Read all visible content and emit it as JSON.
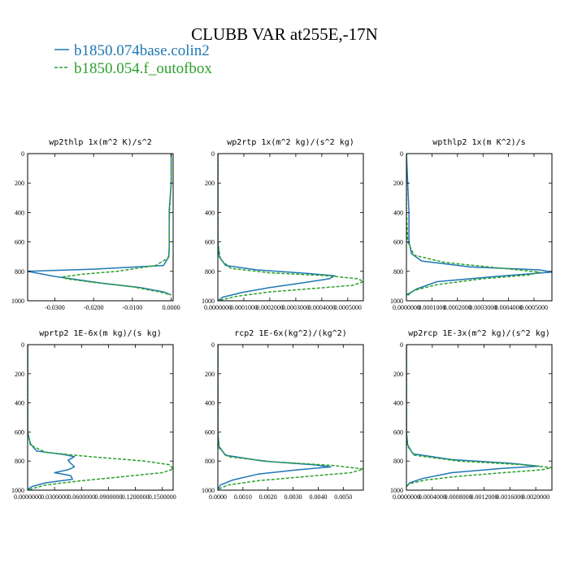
{
  "figure": {
    "title": "CLUBB VAR at255E,-17N",
    "legend": [
      {
        "name": "b1850.074base.colin2",
        "color": "#1f77b4",
        "dash": "solid"
      },
      {
        "name": "b1850.054.f_outofbox",
        "color": "#2ca02c",
        "dash": "dashed"
      }
    ]
  },
  "chart_data": [
    {
      "type": "line",
      "title": "wp2thlp  1x(m^2 K)/s^2",
      "xlim": [
        -0.037,
        0.0005
      ],
      "ylim": [
        1000,
        0
      ],
      "grid": false,
      "xticks": [
        -0.03,
        -0.02,
        -0.01,
        0.0
      ],
      "xtick_labels": [
        "-0.0300",
        "-0.0200",
        "-0.0100",
        "0.0000"
      ],
      "yticks": [
        0,
        200,
        400,
        600,
        800,
        1000
      ],
      "ytick_labels": [
        "0",
        "200",
        "400",
        "600",
        "800",
        "1000"
      ],
      "series": [
        {
          "name": "b1850.074base.colin2",
          "color": "#1f77b4",
          "dash": "solid",
          "x": [
            0.0,
            0.0,
            -0.0005,
            -0.0005,
            -0.0005,
            -0.0006,
            -0.002,
            -0.02,
            -0.037,
            -0.033,
            -0.03,
            -0.018,
            -0.008,
            -0.002,
            0.0
          ],
          "y": [
            0,
            200,
            380,
            500,
            640,
            700,
            760,
            785,
            800,
            820,
            835,
            880,
            910,
            940,
            960
          ]
        },
        {
          "name": "b1850.054.f_outofbox",
          "color": "#2ca02c",
          "dash": "dashed",
          "x": [
            0.0,
            0.0,
            -0.0004,
            -0.0005,
            -0.0005,
            -0.0008,
            -0.004,
            -0.014,
            -0.023,
            -0.028,
            -0.027,
            -0.02,
            -0.01,
            -0.003,
            0.0
          ],
          "y": [
            0,
            200,
            380,
            500,
            640,
            710,
            760,
            800,
            820,
            838,
            850,
            875,
            905,
            940,
            960
          ]
        }
      ]
    },
    {
      "type": "line",
      "title": "wp2rtp  1x(m^2 kg)/(s^2 kg)",
      "xlim": [
        0.0,
        0.00056
      ],
      "ylim": [
        1000,
        0
      ],
      "grid": false,
      "xticks": [
        0.0,
        0.0001,
        0.0002,
        0.0003,
        0.0004,
        0.0005
      ],
      "xtick_labels": [
        "0.0000000",
        "0.0001000",
        "0.0002000",
        "0.0003000",
        "0.0004000",
        "0.0005000"
      ],
      "yticks": [
        0,
        200,
        400,
        600,
        800,
        1000
      ],
      "ytick_labels": [
        "0",
        "200",
        "400",
        "600",
        "800",
        "1000"
      ],
      "series": [
        {
          "name": "b1850.074base.colin2",
          "color": "#1f77b4",
          "dash": "solid",
          "x": [
            0.0,
            0.0,
            0.0,
            5e-06,
            3e-05,
            0.00015,
            0.00035,
            0.00045,
            0.00043,
            0.00032,
            0.0002,
            9e-05,
            2e-05,
            0.0
          ],
          "y": [
            0,
            300,
            600,
            700,
            760,
            790,
            815,
            830,
            850,
            880,
            910,
            945,
            975,
            1000
          ]
        },
        {
          "name": "b1850.054.f_outofbox",
          "color": "#2ca02c",
          "dash": "dashed",
          "x": [
            0.0,
            0.0,
            0.0,
            1e-05,
            5e-05,
            0.0002,
            0.00042,
            0.00054,
            0.00056,
            0.00052,
            0.00038,
            0.0002,
            7e-05,
            0.0
          ],
          "y": [
            0,
            300,
            600,
            720,
            780,
            810,
            830,
            850,
            870,
            895,
            915,
            940,
            970,
            1000
          ]
        }
      ]
    },
    {
      "type": "line",
      "title": "wpthlp2  1x(m K^2)/s",
      "xlim": [
        0.0,
        0.00057
      ],
      "ylim": [
        1000,
        0
      ],
      "grid": false,
      "xticks": [
        0.0,
        0.0001,
        0.0002,
        0.0003,
        0.0004,
        0.0005
      ],
      "xtick_labels": [
        "0.0000000",
        "0.0001000",
        "0.0002000",
        "0.0003000",
        "0.0004000",
        "0.0005000"
      ],
      "yticks": [
        0,
        200,
        400,
        600,
        800,
        1000
      ],
      "ytick_labels": [
        "0",
        "200",
        "400",
        "600",
        "800",
        "1000"
      ],
      "series": [
        {
          "name": "b1850.074base.colin2",
          "color": "#1f77b4",
          "dash": "solid",
          "x": [
            0.0,
            5e-06,
            1e-05,
            1e-05,
            2e-05,
            6e-05,
            0.00025,
            0.00052,
            0.00057,
            0.00035,
            0.00012,
            4e-05,
            0.0
          ],
          "y": [
            0,
            200,
            400,
            600,
            680,
            730,
            770,
            790,
            805,
            835,
            870,
            920,
            960
          ]
        },
        {
          "name": "b1850.054.f_outofbox",
          "color": "#2ca02c",
          "dash": "dashed",
          "x": [
            0.0,
            0.0,
            0.0,
            5e-06,
            3e-05,
            0.00015,
            0.00038,
            0.00052,
            0.00048,
            0.0003,
            0.00012,
            3e-05,
            0.0
          ],
          "y": [
            0,
            200,
            400,
            600,
            690,
            740,
            780,
            805,
            825,
            850,
            890,
            930,
            970
          ]
        }
      ]
    },
    {
      "type": "line",
      "title": "wprtp2  1E-6x(m kg)/(s kg)",
      "xlim": [
        0.0,
        0.162
      ],
      "ylim": [
        1000,
        0
      ],
      "grid": false,
      "xticks": [
        0.0,
        0.03,
        0.06,
        0.09,
        0.12,
        0.15
      ],
      "xtick_labels": [
        "0.0000000",
        "0.0300000",
        "0.0600000",
        "0.0900000",
        "0.1200000",
        "0.1500000"
      ],
      "yticks": [
        0,
        200,
        400,
        600,
        800,
        1000
      ],
      "ytick_labels": [
        "0",
        "200",
        "400",
        "600",
        "800",
        "1000"
      ],
      "series": [
        {
          "name": "b1850.074base.colin2",
          "color": "#1f77b4",
          "dash": "solid",
          "x": [
            0.0,
            0.0,
            0.0,
            0.003,
            0.01,
            0.04,
            0.052,
            0.045,
            0.048,
            0.052,
            0.045,
            0.03,
            0.048,
            0.05,
            0.02,
            0.005,
            0.0
          ],
          "y": [
            0,
            300,
            600,
            680,
            730,
            755,
            770,
            795,
            815,
            840,
            860,
            880,
            900,
            925,
            950,
            975,
            995
          ]
        },
        {
          "name": "b1850.054.f_outofbox",
          "color": "#2ca02c",
          "dash": "dashed",
          "x": [
            0.0,
            0.0,
            0.0,
            0.003,
            0.02,
            0.07,
            0.13,
            0.158,
            0.162,
            0.15,
            0.11,
            0.06,
            0.02,
            0.005,
            0.0
          ],
          "y": [
            0,
            300,
            600,
            690,
            740,
            770,
            800,
            825,
            855,
            880,
            905,
            935,
            965,
            990,
            1000
          ]
        }
      ]
    },
    {
      "type": "line",
      "title": "rcp2  1E-6x(kg^2)/(kg^2)",
      "xlim": [
        0.0,
        0.0058
      ],
      "ylim": [
        1000,
        0
      ],
      "grid": false,
      "xticks": [
        0.0,
        0.001,
        0.002,
        0.003,
        0.004,
        0.005
      ],
      "xtick_labels": [
        "0.0000",
        "0.0010",
        "0.0020",
        "0.0030",
        "0.0040",
        "0.0050"
      ],
      "yticks": [
        0,
        200,
        400,
        600,
        800,
        1000
      ],
      "ytick_labels": [
        "0",
        "200",
        "400",
        "600",
        "800",
        "1000"
      ],
      "series": [
        {
          "name": "b1850.074base.colin2",
          "color": "#1f77b4",
          "dash": "solid",
          "x": [
            0.0,
            0.0,
            0.0,
            5e-05,
            0.0003,
            0.0018,
            0.0038,
            0.0045,
            0.0032,
            0.0016,
            0.0006,
            0.0001,
            0.0
          ],
          "y": [
            0,
            300,
            600,
            700,
            760,
            800,
            825,
            840,
            860,
            890,
            930,
            965,
            995
          ]
        },
        {
          "name": "b1850.054.f_outofbox",
          "color": "#2ca02c",
          "dash": "dashed",
          "x": [
            0.0,
            0.0,
            0.0,
            5e-05,
            0.0004,
            0.0022,
            0.0046,
            0.0058,
            0.0053,
            0.0036,
            0.0016,
            0.0004,
            0.0
          ],
          "y": [
            0,
            300,
            600,
            710,
            770,
            805,
            830,
            855,
            880,
            905,
            935,
            965,
            995
          ]
        }
      ]
    },
    {
      "type": "line",
      "title": "wp2rcp  1E-3x(m^2 kg)/(s^2 kg)",
      "xlim": [
        0.0,
        0.00225
      ],
      "ylim": [
        1000,
        0
      ],
      "grid": false,
      "xticks": [
        0.0,
        0.0004,
        0.0008,
        0.0012,
        0.0016,
        0.002
      ],
      "xtick_labels": [
        "0.0000000",
        "0.0004000",
        "0.0008000",
        "0.0012000",
        "0.0016000",
        "0.0020000"
      ],
      "yticks": [
        0,
        200,
        400,
        600,
        800,
        1000
      ],
      "ytick_labels": [
        "0",
        "200",
        "400",
        "600",
        "800",
        "1000"
      ],
      "series": [
        {
          "name": "b1850.074base.colin2",
          "color": "#1f77b4",
          "dash": "solid",
          "x": [
            0.0,
            0.0,
            0.0,
            2e-05,
            0.0001,
            0.0007,
            0.0016,
            0.00205,
            0.0015,
            0.0007,
            0.00025,
            5e-05,
            0.0
          ],
          "y": [
            0,
            300,
            600,
            690,
            750,
            790,
            815,
            835,
            850,
            880,
            920,
            950,
            975
          ]
        },
        {
          "name": "b1850.054.f_outofbox",
          "color": "#2ca02c",
          "dash": "dashed",
          "x": [
            0.0,
            0.0,
            0.0,
            2e-05,
            0.00012,
            0.0008,
            0.0018,
            0.00225,
            0.0021,
            0.0015,
            0.0008,
            0.0003,
            5e-05,
            0.0
          ],
          "y": [
            0,
            300,
            600,
            700,
            760,
            800,
            825,
            845,
            860,
            880,
            905,
            930,
            955,
            975
          ]
        }
      ]
    }
  ]
}
